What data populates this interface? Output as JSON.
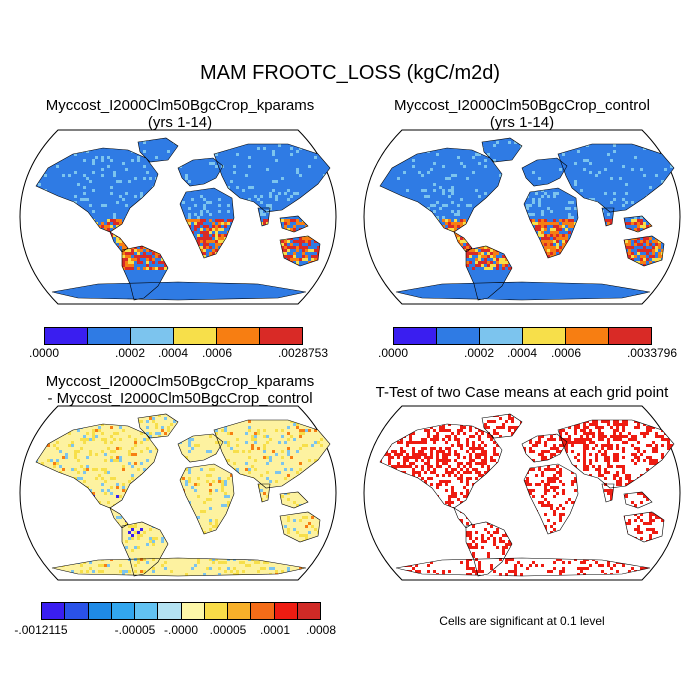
{
  "main_title": "MAM FROOTC_LOSS (kgC/m2d)",
  "panels": {
    "top_left": {
      "title_line1": "Myccost_I2000Clm50BgcCrop_kparams",
      "title_line2": "(yrs 1-14)"
    },
    "top_right": {
      "title_line1": "Myccost_I2000Clm50BgcCrop_control",
      "title_line2": "(yrs 1-14)"
    },
    "bottom_left": {
      "title_line1": "Myccost_I2000Clm50BgcCrop_kparams",
      "title_line2": "- Myccost_I2000Clm50BgcCrop_control"
    },
    "bottom_right": {
      "title_line1": "T-Test of two Case means at each grid point",
      "note": "Cells are significant at 0.1 level"
    }
  },
  "colorbars": {
    "top_left": {
      "colors": [
        "#3a1ef0",
        "#2f7be4",
        "#7cc4ee",
        "#f7df4a",
        "#f77e12",
        "#d92a26"
      ],
      "ticks": [
        ".0000",
        ".0002",
        ".0004",
        ".0006",
        ".0028753"
      ]
    },
    "top_right": {
      "colors": [
        "#3a1ef0",
        "#2f7be4",
        "#7cc4ee",
        "#f7df4a",
        "#f77e12",
        "#d92a26"
      ],
      "ticks": [
        ".0000",
        ".0002",
        ".0004",
        ".0006",
        ".0033796"
      ]
    },
    "bottom_left": {
      "colors": [
        "#3a1ef0",
        "#2a52e8",
        "#1f8ae6",
        "#32a6ee",
        "#62c2f2",
        "#b4e2f2",
        "#fdf7a8",
        "#f9dc48",
        "#f7b02a",
        "#f46c18",
        "#ee1c12",
        "#d02a26"
      ],
      "ticks": [
        "-.0012115",
        "-.00005",
        "-.0000",
        ".00005",
        ".0001",
        ".0008"
      ]
    }
  },
  "map_colors": {
    "ocean": "#ffffff",
    "coast": "#000000",
    "low": "#2f7be4",
    "mid": "#7cc4ee",
    "warm": "#f77e12",
    "hot": "#d92a26",
    "yellow": "#f7df4a",
    "diff_base": "#fdf2a0",
    "sig": "#ee1c12"
  }
}
